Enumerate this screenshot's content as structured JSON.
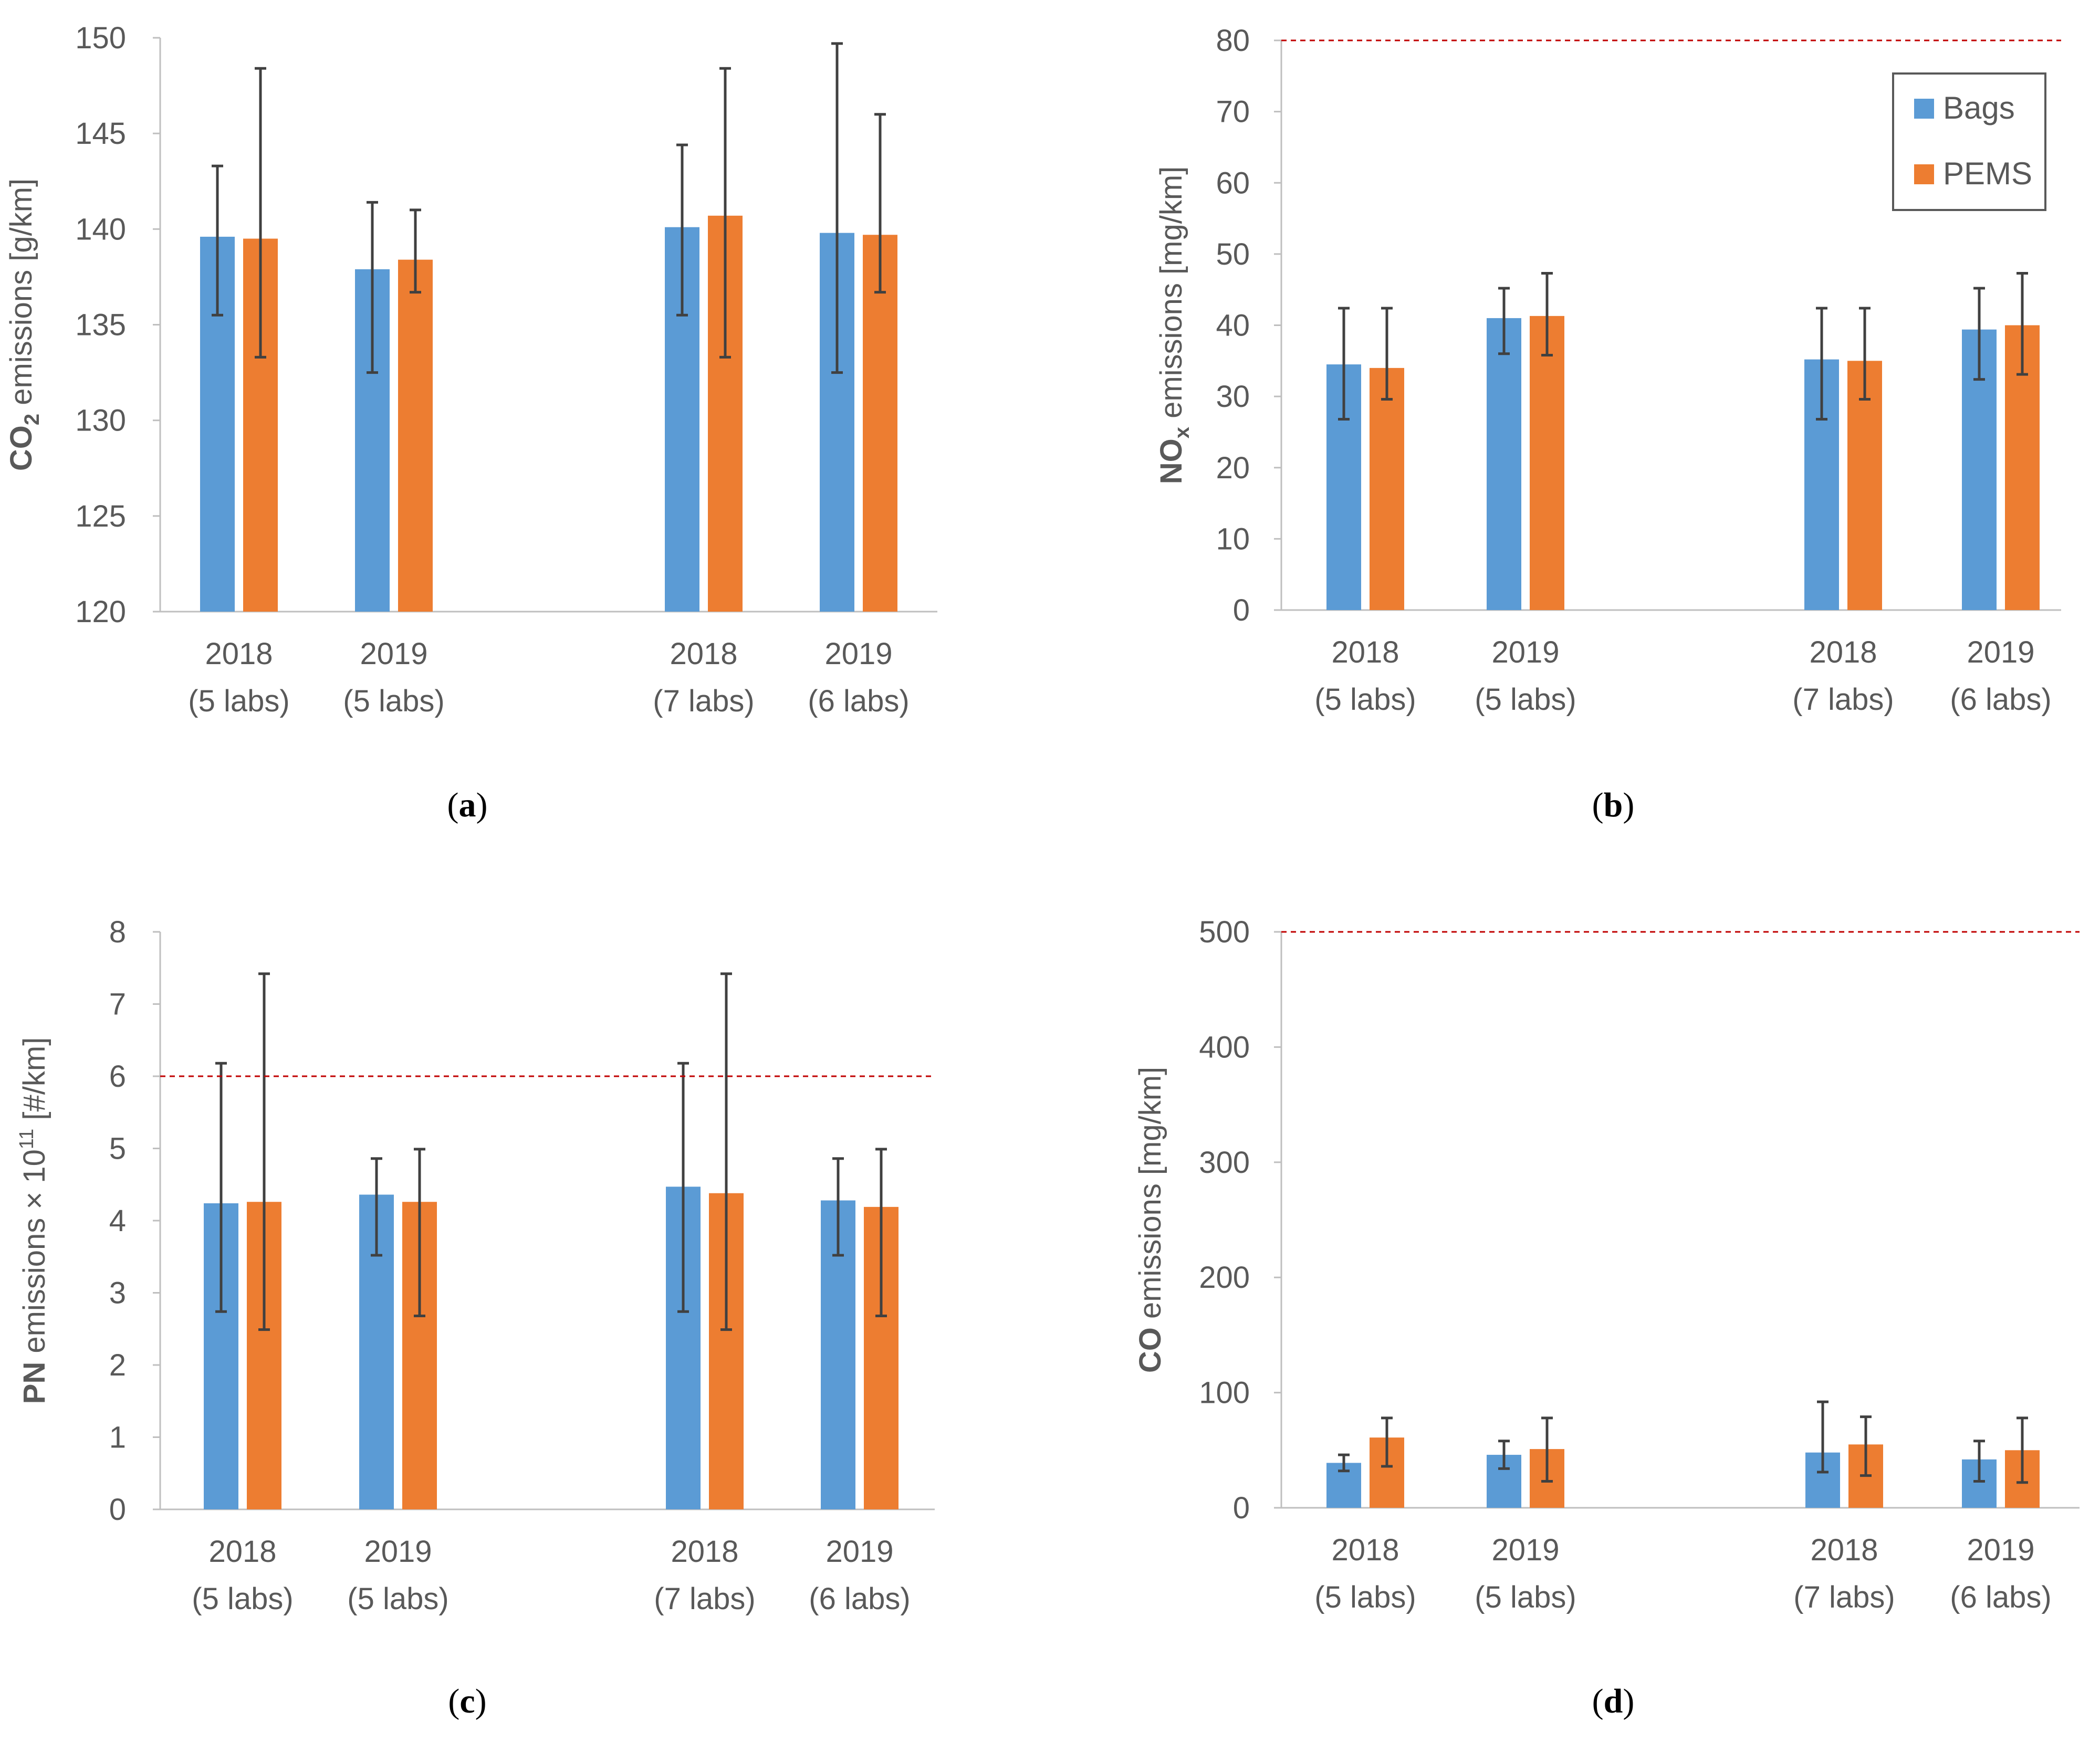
{
  "colors": {
    "bags": "#5B9BD5",
    "pems": "#ED7D31",
    "error_bar": "#404040",
    "limit_line": "#C00000",
    "axis": "#BFBFBF",
    "text": "#595959"
  },
  "legend": {
    "bags_label": "Bags",
    "pems_label": "PEMS"
  },
  "chart_data": [
    {
      "type": "bar",
      "caption_letter": "a",
      "ylabel": {
        "pre": "CO",
        "sub": "2",
        "post": " emissions [g/km]"
      },
      "ylim": [
        120,
        150
      ],
      "yticks": [
        120,
        125,
        130,
        135,
        140,
        145,
        150
      ],
      "categories": [
        [
          "2018",
          "(5 labs)"
        ],
        [
          "2019",
          "(5 labs)"
        ],
        [
          "2018",
          "(7 labs)"
        ],
        [
          "2019",
          "(6 labs)"
        ]
      ],
      "series": [
        {
          "name": "Bags",
          "values": [
            139.6,
            137.9,
            140.1,
            139.8
          ],
          "err_low": [
            135.5,
            132.5,
            135.5,
            132.5
          ],
          "err_high": [
            143.3,
            141.4,
            144.4,
            149.7
          ]
        },
        {
          "name": "PEMS",
          "values": [
            139.5,
            138.4,
            140.7,
            139.7
          ],
          "err_low": [
            133.3,
            136.7,
            133.3,
            136.7
          ],
          "err_high": [
            148.4,
            141.0,
            148.4,
            146.0
          ]
        }
      ],
      "limit": null,
      "legend": false
    },
    {
      "type": "bar",
      "caption_letter": "b",
      "ylabel": {
        "pre": "NO",
        "sub": "x",
        "post": " emissions [mg/km]"
      },
      "ylim": [
        0,
        80
      ],
      "yticks": [
        0,
        10,
        20,
        30,
        40,
        50,
        60,
        70,
        80
      ],
      "categories": [
        [
          "2018",
          "(5 labs)"
        ],
        [
          "2019",
          "(5 labs)"
        ],
        [
          "2018",
          "(7 labs)"
        ],
        [
          "2019",
          "(6 labs)"
        ]
      ],
      "series": [
        {
          "name": "Bags",
          "values": [
            34.5,
            41.0,
            35.2,
            39.4
          ],
          "err_low": [
            26.8,
            36.0,
            26.8,
            32.4
          ],
          "err_high": [
            42.4,
            45.2,
            42.4,
            45.2
          ]
        },
        {
          "name": "PEMS",
          "values": [
            34.0,
            41.3,
            35.0,
            40.0
          ],
          "err_low": [
            29.6,
            35.8,
            29.6,
            33.1
          ],
          "err_high": [
            42.4,
            47.3,
            42.4,
            47.3
          ]
        }
      ],
      "limit": 80,
      "legend": true
    },
    {
      "type": "bar",
      "caption_letter": "c",
      "ylabel": {
        "pre": "PN",
        "post": " emissions × 10",
        "sup": "11",
        "post2": " [#/km]"
      },
      "ylim": [
        0,
        8
      ],
      "yticks": [
        0,
        1,
        2,
        3,
        4,
        5,
        6,
        7,
        8
      ],
      "categories": [
        [
          "2018",
          "(5 labs)"
        ],
        [
          "2019",
          "(5 labs)"
        ],
        [
          "2018",
          "(7 labs)"
        ],
        [
          "2019",
          "(6 labs)"
        ]
      ],
      "series": [
        {
          "name": "Bags",
          "values": [
            4.24,
            4.36,
            4.47,
            4.28
          ],
          "err_low": [
            2.74,
            3.52,
            2.74,
            3.52
          ],
          "err_high": [
            6.18,
            4.86,
            6.18,
            4.86
          ]
        },
        {
          "name": "PEMS",
          "values": [
            4.26,
            4.26,
            4.38,
            4.19
          ],
          "err_low": [
            2.49,
            2.68,
            2.49,
            2.68
          ],
          "err_high": [
            7.42,
            4.99,
            7.42,
            4.99
          ]
        }
      ],
      "limit": 6,
      "legend": false
    },
    {
      "type": "bar",
      "caption_letter": "d",
      "ylabel": {
        "pre": "CO",
        "post": " emissions [mg/km]"
      },
      "ylim": [
        0,
        500
      ],
      "yticks": [
        0,
        100,
        200,
        300,
        400,
        500
      ],
      "categories": [
        [
          "2018",
          "(5 labs)"
        ],
        [
          "2019",
          "(5 labs)"
        ],
        [
          "2018",
          "(7 labs)"
        ],
        [
          "2019",
          "(6 labs)"
        ]
      ],
      "series": [
        {
          "name": "Bags",
          "values": [
            39,
            46,
            48,
            42
          ],
          "err_low": [
            32,
            34,
            31,
            23
          ],
          "err_high": [
            46,
            58,
            92,
            58
          ]
        },
        {
          "name": "PEMS",
          "values": [
            61,
            51,
            55,
            50
          ],
          "err_low": [
            36,
            23,
            28,
            22
          ],
          "err_high": [
            78,
            78,
            79,
            78
          ]
        }
      ],
      "limit": 500,
      "legend": false
    }
  ]
}
